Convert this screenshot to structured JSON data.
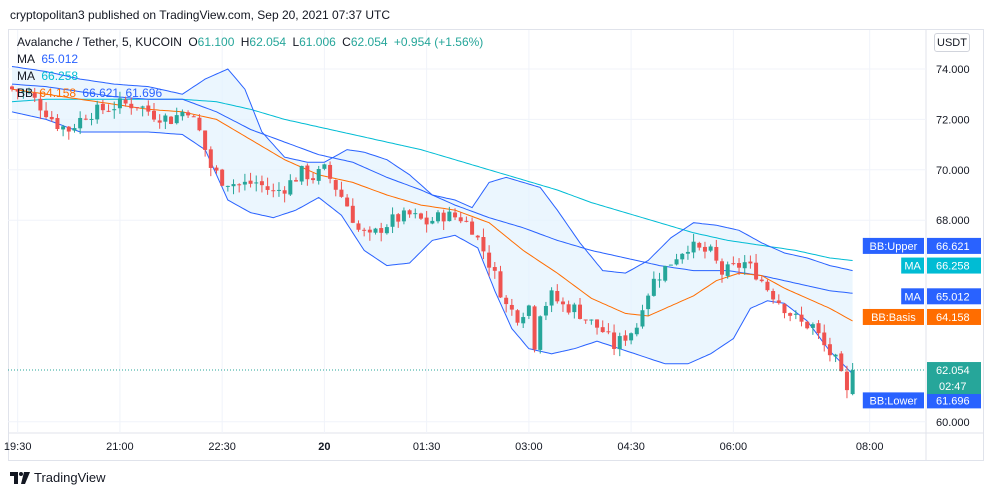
{
  "header": {
    "text": "cryptopolitan3 published on TradingView.com, Sep 20, 2021 07:37 UTC"
  },
  "footer": {
    "brand": "TradingView",
    "logo_icon": "tradingview-logo-icon"
  },
  "toolbar": {
    "currency": "USDT"
  },
  "legend": {
    "symbol": "Avalanche / Tether, 5, KUCOIN",
    "o_label": "O",
    "o": "61.100",
    "h_label": "H",
    "h": "62.054",
    "l_label": "L",
    "l": "61.006",
    "c_label": "C",
    "c": "62.054",
    "change": "+0.954 (+1.56%)",
    "ma1_label": "MA",
    "ma1": "65.012",
    "ma2_label": "MA",
    "ma2": "66.258",
    "bb_label": "BB",
    "bb_basis": "64.158",
    "bb_upper": "66.621",
    "bb_lower": "61.696"
  },
  "colors": {
    "up": "#26a69a",
    "down": "#ef5350",
    "bb_band": "#2962ff",
    "bb_basis": "#ff6d00",
    "bb_fill": "#e3f2fd",
    "ma1": "#2962ff",
    "ma2": "#00bcd4",
    "text": "#131722",
    "grid": "#f0f3fa"
  },
  "chart_data": {
    "type": "candlestick",
    "title": "Avalanche / Tether, 5, KUCOIN",
    "ylim": [
      59.7,
      75.4
    ],
    "y_ticks": [
      "74.000",
      "72.000",
      "70.000",
      "68.000",
      "60.000"
    ],
    "x_ticks": [
      {
        "label": "19:30",
        "t": 1
      },
      {
        "label": "21:00",
        "t": 19
      },
      {
        "label": "22:30",
        "t": 37
      },
      {
        "label": "20",
        "t": 55,
        "bold": true
      },
      {
        "label": "01:30",
        "t": 73
      },
      {
        "label": "03:00",
        "t": 91
      },
      {
        "label": "04:30",
        "t": 109
      },
      {
        "label": "06:00",
        "t": 127
      },
      {
        "label": "08:00",
        "t": 151
      }
    ],
    "last_price": {
      "value": 62.054,
      "countdown": "02:47"
    },
    "price_tags": [
      {
        "name": "BB:Upper",
        "value": "66.621",
        "y": 66.621,
        "color": "#2962ff"
      },
      {
        "name": "MA",
        "value": "66.258",
        "y": 66.258,
        "color": "#00bcd4"
      },
      {
        "name": "MA",
        "value": "65.012",
        "y": 65.012,
        "color": "#2962ff"
      },
      {
        "name": "BB:Basis",
        "value": "64.158",
        "y": 64.158,
        "color": "#ff6d00"
      },
      {
        "name": "BB:Lower",
        "value": "61.696",
        "y": 61.696,
        "color": "#2962ff"
      }
    ],
    "close_anchors": [
      [
        0,
        73.2
      ],
      [
        3,
        73.0
      ],
      [
        6,
        72.3
      ],
      [
        8,
        71.8
      ],
      [
        10,
        71.6
      ],
      [
        13,
        72.2
      ],
      [
        16,
        72.4
      ],
      [
        19,
        72.6
      ],
      [
        22,
        72.6
      ],
      [
        25,
        72.2
      ],
      [
        28,
        72.0
      ],
      [
        30,
        72.3
      ],
      [
        31,
        72.4
      ],
      [
        33,
        71.5
      ],
      [
        35,
        70.1
      ],
      [
        37,
        69.6
      ],
      [
        40,
        69.4
      ],
      [
        43,
        69.5
      ],
      [
        46,
        69.1
      ],
      [
        48,
        69.3
      ],
      [
        51,
        69.9
      ],
      [
        53,
        69.7
      ],
      [
        55,
        70.0
      ],
      [
        57,
        69.3
      ],
      [
        59,
        68.6
      ],
      [
        61,
        67.6
      ],
      [
        63,
        67.3
      ],
      [
        65,
        67.7
      ],
      [
        67,
        68.0
      ],
      [
        70,
        68.2
      ],
      [
        73,
        67.9
      ],
      [
        76,
        68.2
      ],
      [
        79,
        68.1
      ],
      [
        81,
        67.7
      ],
      [
        83,
        66.8
      ],
      [
        85,
        65.8
      ],
      [
        87,
        64.6
      ],
      [
        89,
        64.2
      ],
      [
        91,
        64.6
      ],
      [
        92,
        63.1
      ],
      [
        93,
        64.4
      ],
      [
        95,
        65.0
      ],
      [
        97,
        64.6
      ],
      [
        99,
        64.5
      ],
      [
        101,
        64.1
      ],
      [
        104,
        63.6
      ],
      [
        106,
        63.0
      ],
      [
        108,
        63.4
      ],
      [
        110,
        63.8
      ],
      [
        111,
        64.7
      ],
      [
        113,
        65.6
      ],
      [
        115,
        66.1
      ],
      [
        117,
        66.6
      ],
      [
        119,
        67.0
      ],
      [
        121,
        66.8
      ],
      [
        123,
        66.7
      ],
      [
        125,
        65.9
      ],
      [
        127,
        66.1
      ],
      [
        129,
        66.3
      ],
      [
        131,
        65.9
      ],
      [
        133,
        65.3
      ],
      [
        135,
        64.8
      ],
      [
        137,
        64.3
      ],
      [
        139,
        63.9
      ],
      [
        141,
        63.8
      ],
      [
        143,
        63.0
      ],
      [
        145,
        62.4
      ],
      [
        147,
        61.1
      ],
      [
        148,
        62.054
      ]
    ],
    "bb_upper": [
      [
        0,
        74.1
      ],
      [
        6,
        73.9
      ],
      [
        12,
        73.6
      ],
      [
        18,
        73.4
      ],
      [
        24,
        73.3
      ],
      [
        30,
        73.0
      ],
      [
        34,
        73.6
      ],
      [
        38,
        74.0
      ],
      [
        41,
        73.2
      ],
      [
        44,
        71.5
      ],
      [
        48,
        70.5
      ],
      [
        52,
        70.3
      ],
      [
        55,
        70.3
      ],
      [
        59,
        70.8
      ],
      [
        62,
        70.7
      ],
      [
        66,
        70.4
      ],
      [
        70,
        69.8
      ],
      [
        74,
        69.0
      ],
      [
        78,
        68.8
      ],
      [
        81,
        68.5
      ],
      [
        84,
        69.5
      ],
      [
        87,
        69.7
      ],
      [
        90,
        69.5
      ],
      [
        93,
        69.3
      ],
      [
        96,
        68.4
      ],
      [
        100,
        67.1
      ],
      [
        104,
        66.0
      ],
      [
        108,
        65.9
      ],
      [
        112,
        66.4
      ],
      [
        116,
        67.3
      ],
      [
        120,
        67.9
      ],
      [
        124,
        67.8
      ],
      [
        128,
        67.6
      ],
      [
        132,
        67.1
      ],
      [
        136,
        66.7
      ],
      [
        140,
        66.5
      ],
      [
        144,
        66.2
      ],
      [
        148,
        66.0
      ]
    ],
    "bb_basis": [
      [
        0,
        73.2
      ],
      [
        6,
        73.0
      ],
      [
        12,
        72.8
      ],
      [
        18,
        72.6
      ],
      [
        24,
        72.4
      ],
      [
        30,
        72.3
      ],
      [
        36,
        72.0
      ],
      [
        42,
        71.2
      ],
      [
        48,
        70.4
      ],
      [
        54,
        69.8
      ],
      [
        60,
        69.5
      ],
      [
        66,
        69.0
      ],
      [
        72,
        68.6
      ],
      [
        78,
        68.4
      ],
      [
        84,
        67.9
      ],
      [
        90,
        66.8
      ],
      [
        96,
        65.9
      ],
      [
        102,
        64.9
      ],
      [
        108,
        64.3
      ],
      [
        112,
        64.2
      ],
      [
        116,
        64.6
      ],
      [
        120,
        65.0
      ],
      [
        124,
        65.6
      ],
      [
        128,
        65.9
      ],
      [
        132,
        65.8
      ],
      [
        136,
        65.3
      ],
      [
        140,
        64.9
      ],
      [
        144,
        64.5
      ],
      [
        148,
        64.0
      ]
    ],
    "bb_lower": [
      [
        0,
        72.3
      ],
      [
        6,
        72.0
      ],
      [
        12,
        71.5
      ],
      [
        18,
        71.5
      ],
      [
        24,
        71.5
      ],
      [
        30,
        71.4
      ],
      [
        34,
        70.8
      ],
      [
        38,
        68.8
      ],
      [
        42,
        68.3
      ],
      [
        46,
        68.1
      ],
      [
        50,
        68.4
      ],
      [
        54,
        68.9
      ],
      [
        58,
        68.2
      ],
      [
        62,
        66.8
      ],
      [
        66,
        66.2
      ],
      [
        70,
        66.3
      ],
      [
        74,
        67.2
      ],
      [
        78,
        67.4
      ],
      [
        82,
        66.9
      ],
      [
        85,
        65.2
      ],
      [
        88,
        63.7
      ],
      [
        91,
        62.9
      ],
      [
        95,
        62.7
      ],
      [
        99,
        62.9
      ],
      [
        103,
        63.2
      ],
      [
        107,
        62.9
      ],
      [
        111,
        62.6
      ],
      [
        115,
        62.3
      ],
      [
        119,
        62.3
      ],
      [
        123,
        62.7
      ],
      [
        127,
        63.3
      ],
      [
        130,
        64.5
      ],
      [
        133,
        64.8
      ],
      [
        136,
        64.7
      ],
      [
        140,
        64.0
      ],
      [
        144,
        62.8
      ],
      [
        148,
        61.9
      ]
    ],
    "ma1": [
      [
        0,
        73.4
      ],
      [
        6,
        73.3
      ],
      [
        12,
        73.1
      ],
      [
        18,
        72.9
      ],
      [
        24,
        72.8
      ],
      [
        30,
        72.8
      ],
      [
        36,
        72.3
      ],
      [
        42,
        71.6
      ],
      [
        48,
        71.1
      ],
      [
        54,
        70.6
      ],
      [
        60,
        70.3
      ],
      [
        66,
        69.7
      ],
      [
        72,
        69.2
      ],
      [
        78,
        68.6
      ],
      [
        84,
        68.1
      ],
      [
        90,
        67.7
      ],
      [
        96,
        67.2
      ],
      [
        102,
        66.8
      ],
      [
        108,
        66.5
      ],
      [
        114,
        66.2
      ],
      [
        120,
        66.0
      ],
      [
        126,
        66.0
      ],
      [
        132,
        65.8
      ],
      [
        138,
        65.5
      ],
      [
        144,
        65.2
      ],
      [
        148,
        65.1
      ]
    ],
    "ma2": [
      [
        0,
        72.7
      ],
      [
        6,
        72.8
      ],
      [
        12,
        72.8
      ],
      [
        18,
        72.8
      ],
      [
        24,
        72.8
      ],
      [
        30,
        72.8
      ],
      [
        36,
        72.7
      ],
      [
        42,
        72.4
      ],
      [
        48,
        72.0
      ],
      [
        54,
        71.7
      ],
      [
        60,
        71.4
      ],
      [
        66,
        71.1
      ],
      [
        72,
        70.8
      ],
      [
        78,
        70.4
      ],
      [
        84,
        70.0
      ],
      [
        90,
        69.6
      ],
      [
        96,
        69.2
      ],
      [
        102,
        68.7
      ],
      [
        108,
        68.3
      ],
      [
        114,
        67.9
      ],
      [
        120,
        67.5
      ],
      [
        126,
        67.2
      ],
      [
        132,
        67.0
      ],
      [
        138,
        66.8
      ],
      [
        144,
        66.5
      ],
      [
        148,
        66.4
      ]
    ]
  }
}
